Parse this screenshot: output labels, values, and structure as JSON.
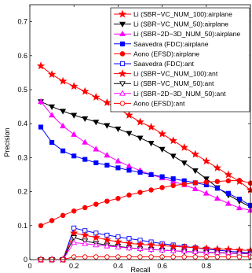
{
  "chart_data": {
    "type": "line",
    "xlabel": "Recall",
    "ylabel": "Precision",
    "xlim": [
      0,
      1
    ],
    "ylim": [
      0,
      0.75
    ],
    "xticks": [
      0,
      0.2,
      0.4,
      0.6,
      0.8,
      1
    ],
    "yticks": [
      0,
      0.1,
      0.2,
      0.3,
      0.4,
      0.5,
      0.6,
      0.7
    ],
    "grid": false,
    "legend_position": "top-right",
    "series": [
      {
        "name": "Li (SBR−VC_NUM_100):airplane",
        "color": "#ff0000",
        "marker": "star",
        "fill": "filled",
        "x": [
          0.05,
          0.1,
          0.15,
          0.2,
          0.25,
          0.3,
          0.35,
          0.4,
          0.45,
          0.5,
          0.55,
          0.6,
          0.65,
          0.7,
          0.75,
          0.8,
          0.85,
          0.9,
          0.95,
          1.0
        ],
        "y": [
          0.57,
          0.545,
          0.525,
          0.51,
          0.495,
          0.478,
          0.462,
          0.445,
          0.425,
          0.405,
          0.39,
          0.37,
          0.35,
          0.33,
          0.31,
          0.29,
          0.27,
          0.25,
          0.23,
          0.205
        ]
      },
      {
        "name": "Li (SBR−VC_NUM_50):airplane",
        "color": "#000000",
        "marker": "triangle-down",
        "fill": "filled",
        "x": [
          0.05,
          0.1,
          0.15,
          0.2,
          0.25,
          0.3,
          0.35,
          0.4,
          0.45,
          0.5,
          0.55,
          0.6,
          0.65,
          0.7,
          0.75,
          0.8,
          0.85,
          0.9,
          0.95,
          1.0
        ],
        "y": [
          0.465,
          0.45,
          0.437,
          0.425,
          0.415,
          0.405,
          0.395,
          0.385,
          0.372,
          0.358,
          0.343,
          0.325,
          0.305,
          0.285,
          0.262,
          0.238,
          0.212,
          0.19,
          0.172,
          0.155
        ]
      },
      {
        "name": "Li (SBR−2D−3D_NUM_50):airplane",
        "color": "#ff00ff",
        "marker": "triangle-up",
        "fill": "filled",
        "x": [
          0.05,
          0.1,
          0.15,
          0.2,
          0.25,
          0.3,
          0.35,
          0.4,
          0.45,
          0.5,
          0.55,
          0.6,
          0.65,
          0.7,
          0.75,
          0.8,
          0.85,
          0.9,
          0.95,
          1.0
        ],
        "y": [
          0.465,
          0.425,
          0.393,
          0.368,
          0.345,
          0.325,
          0.307,
          0.29,
          0.275,
          0.262,
          0.25,
          0.24,
          0.23,
          0.22,
          0.208,
          0.195,
          0.18,
          0.165,
          0.152,
          0.145
        ]
      },
      {
        "name": "Saavedra (FDC):airplane",
        "color": "#0000ff",
        "marker": "square",
        "fill": "filled",
        "x": [
          0.05,
          0.1,
          0.15,
          0.2,
          0.25,
          0.3,
          0.35,
          0.4,
          0.45,
          0.5,
          0.55,
          0.6,
          0.65,
          0.7,
          0.75,
          0.8,
          0.85,
          0.9,
          0.95,
          1.0
        ],
        "y": [
          0.39,
          0.345,
          0.32,
          0.305,
          0.295,
          0.285,
          0.278,
          0.27,
          0.263,
          0.257,
          0.25,
          0.244,
          0.238,
          0.232,
          0.226,
          0.22,
          0.21,
          0.195,
          0.178,
          0.16
        ]
      },
      {
        "name": "Aono (EFSD):airplane",
        "color": "#ff0000",
        "marker": "circle",
        "fill": "filled",
        "x": [
          0.05,
          0.1,
          0.15,
          0.2,
          0.25,
          0.3,
          0.35,
          0.4,
          0.45,
          0.5,
          0.55,
          0.6,
          0.65,
          0.7,
          0.75,
          0.8,
          0.85,
          0.9,
          0.95,
          1.0
        ],
        "y": [
          0.1,
          0.115,
          0.13,
          0.143,
          0.153,
          0.163,
          0.172,
          0.18,
          0.19,
          0.198,
          0.205,
          0.212,
          0.218,
          0.222,
          0.226,
          0.228,
          0.23,
          0.232,
          0.233,
          0.225
        ]
      },
      {
        "name": "Saavedra (FDC):ant",
        "color": "#0000ff",
        "marker": "square",
        "fill": "open",
        "x": [
          0.05,
          0.1,
          0.15,
          0.2,
          0.25,
          0.3,
          0.35,
          0.4,
          0.45,
          0.5,
          0.55,
          0.6,
          0.65,
          0.7,
          0.75,
          0.8,
          0.85,
          0.9,
          0.95,
          1.0
        ],
        "y": [
          0.0,
          0.0,
          0.0,
          0.093,
          0.085,
          0.078,
          0.072,
          0.067,
          0.062,
          0.057,
          0.052,
          0.047,
          0.043,
          0.039,
          0.035,
          0.031,
          0.028,
          0.025,
          0.022,
          0.02
        ]
      },
      {
        "name": "Li (SBR−VC_NUM_100):ant",
        "color": "#ff0000",
        "marker": "star",
        "fill": "filled",
        "x": [
          0.05,
          0.1,
          0.15,
          0.2,
          0.25,
          0.3,
          0.35,
          0.4,
          0.45,
          0.5,
          0.55,
          0.6,
          0.65,
          0.7,
          0.75,
          0.8,
          0.85,
          0.9,
          0.95,
          1.0
        ],
        "y": [
          0.0,
          0.0,
          0.0,
          0.078,
          0.072,
          0.065,
          0.058,
          0.052,
          0.048,
          0.045,
          0.043,
          0.041,
          0.039,
          0.037,
          0.035,
          0.033,
          0.031,
          0.03,
          0.028,
          0.027
        ]
      },
      {
        "name": "Li (SBR−VC_NUM_50):ant",
        "color": "#000000",
        "marker": "triangle-down",
        "fill": "open",
        "x": [
          0.05,
          0.1,
          0.15,
          0.2,
          0.25,
          0.3,
          0.35,
          0.4,
          0.45,
          0.5,
          0.55,
          0.6,
          0.65,
          0.7,
          0.75,
          0.8,
          0.85,
          0.9,
          0.95,
          1.0
        ],
        "y": [
          0.0,
          0.0,
          0.0,
          0.065,
          0.055,
          0.048,
          0.043,
          0.039,
          0.035,
          0.032,
          0.03,
          0.028,
          0.026,
          0.024,
          0.022,
          0.021,
          0.02,
          0.019,
          0.018,
          0.017
        ]
      },
      {
        "name": "Li (SBR−2D−3D_NUM_50):ant",
        "color": "#ff00ff",
        "marker": "triangle-up",
        "fill": "open",
        "x": [
          0.05,
          0.1,
          0.15,
          0.2,
          0.25,
          0.3,
          0.35,
          0.4,
          0.45,
          0.5,
          0.55,
          0.6,
          0.65,
          0.7,
          0.75,
          0.8,
          0.85,
          0.9,
          0.95,
          1.0
        ],
        "y": [
          0.0,
          0.0,
          0.0,
          0.05,
          0.047,
          0.043,
          0.04,
          0.037,
          0.034,
          0.032,
          0.03,
          0.028,
          0.026,
          0.025,
          0.023,
          0.022,
          0.021,
          0.02,
          0.019,
          0.018
        ]
      },
      {
        "name": "Aono (EFSD):ant",
        "color": "#ff0000",
        "marker": "circle",
        "fill": "open",
        "x": [
          0.05,
          0.1,
          0.15,
          0.2,
          0.25,
          0.3,
          0.35,
          0.4,
          0.45,
          0.5,
          0.55,
          0.6,
          0.65,
          0.7,
          0.75,
          0.8,
          0.85,
          0.9,
          0.95,
          1.0
        ],
        "y": [
          0.0,
          0.0,
          0.0,
          0.008,
          0.008,
          0.008,
          0.008,
          0.008,
          0.008,
          0.008,
          0.008,
          0.008,
          0.008,
          0.008,
          0.008,
          0.008,
          0.008,
          0.008,
          0.008,
          0.008
        ]
      }
    ]
  }
}
